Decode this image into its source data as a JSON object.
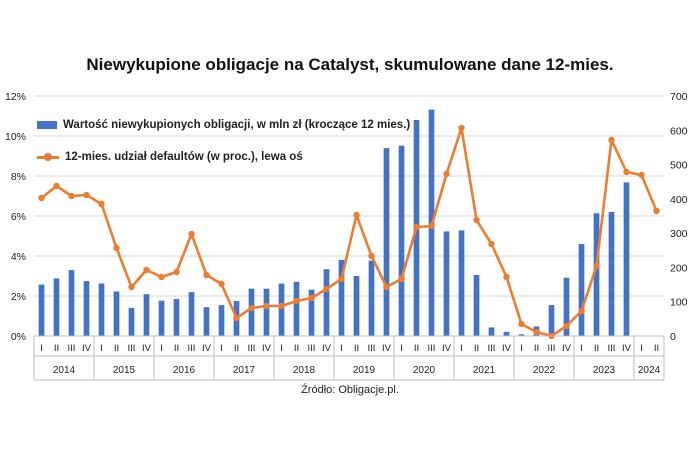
{
  "title": "Niewykupione obligacje na Catalyst, skumulowane dane 12-mies.",
  "source": "Źródło: Obligacje.pl.",
  "colors": {
    "bars": "#4472C4",
    "line": "#ED7D31",
    "grid": "#d9d9d9"
  },
  "chart_data": {
    "type": "bar+line",
    "legend_position": "top-left",
    "grid": true,
    "categories": [
      "I",
      "II",
      "III",
      "IV",
      "I",
      "II",
      "III",
      "IV",
      "I",
      "II",
      "III",
      "IV",
      "I",
      "II",
      "III",
      "IV",
      "I",
      "II",
      "III",
      "IV",
      "I",
      "II",
      "III",
      "IV",
      "I",
      "II",
      "III",
      "IV",
      "I",
      "II",
      "III",
      "IV",
      "I",
      "II",
      "III",
      "IV",
      "I",
      "II",
      "III",
      "IV",
      "I",
      "II"
    ],
    "years": [
      {
        "label": "2014",
        "count": 4
      },
      {
        "label": "2015",
        "count": 4
      },
      {
        "label": "2016",
        "count": 4
      },
      {
        "label": "2017",
        "count": 4
      },
      {
        "label": "2018",
        "count": 4
      },
      {
        "label": "2019",
        "count": 4
      },
      {
        "label": "2020",
        "count": 4
      },
      {
        "label": "2021",
        "count": 4
      },
      {
        "label": "2022",
        "count": 4
      },
      {
        "label": "2023",
        "count": 4
      },
      {
        "label": "2024",
        "count": 2
      }
    ],
    "left_axis": {
      "ylim": [
        0,
        12
      ],
      "ticks": [
        "0%",
        "2%",
        "4%",
        "6%",
        "8%",
        "10%",
        "12%"
      ]
    },
    "right_axis": {
      "ylim": [
        0,
        700
      ],
      "ticks": [
        "0",
        "100",
        "200",
        "300",
        "400",
        "500",
        "600",
        "700"
      ]
    },
    "series": [
      {
        "name": "Wartość niewykupionych obligacji, w mln zł (kroczące 12 mies.)",
        "type": "bar",
        "axis": "right",
        "values": [
          150,
          168,
          192,
          160,
          153,
          130,
          82,
          122,
          103,
          108,
          128,
          84,
          90,
          102,
          138,
          138,
          153,
          158,
          135,
          195,
          222,
          175,
          220,
          548,
          555,
          630,
          660,
          305,
          308,
          178,
          25,
          12,
          5,
          28,
          90,
          170,
          268,
          358,
          362,
          448,
          0,
          0
        ]
      },
      {
        "name": "12-mies. udział defaultów (w proc.), lewa oś",
        "type": "line",
        "axis": "left",
        "values": [
          6.9,
          7.5,
          7.0,
          7.05,
          6.6,
          4.4,
          2.45,
          3.3,
          2.95,
          3.2,
          5.1,
          3.05,
          2.6,
          0.9,
          1.4,
          1.5,
          1.5,
          1.75,
          1.9,
          2.35,
          2.85,
          6.05,
          4.0,
          2.45,
          2.85,
          5.45,
          5.5,
          8.1,
          10.4,
          5.8,
          4.6,
          2.95,
          0.6,
          0.2,
          0.0,
          0.5,
          1.25,
          3.5,
          9.8,
          8.2,
          8.05,
          6.25
        ]
      }
    ]
  }
}
